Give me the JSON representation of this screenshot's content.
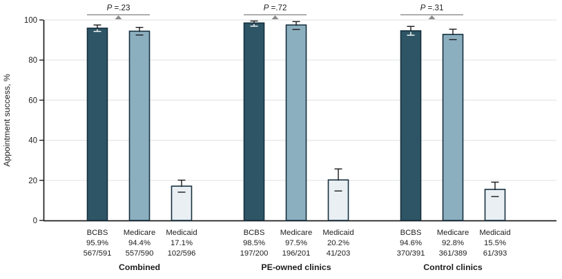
{
  "figure": {
    "kind": "grouped bar chart with error bars and P-value brackets"
  },
  "colors": {
    "bar_bcbs": "#2d5565",
    "bar_medicare": "#8cafbf",
    "bar_medicaid": "#e9eff3",
    "bar_border": "#16303e",
    "axis": "#1e1e1e",
    "gridline": "#e4e6e8",
    "error_bar": "#1a1a1a",
    "error_bar_inner": "#ffffff",
    "bracket": "#7f7f7f",
    "bracket_pointer": "#8b8b8b",
    "text": "#1d1d1d",
    "background": "#ffffff"
  },
  "chart_data": {
    "type": "bar",
    "title": "",
    "xlabel": "",
    "ylabel": "Appointment success, %",
    "ylim": [
      0,
      100
    ],
    "yticks": [
      0,
      20,
      40,
      60,
      80,
      100
    ],
    "grid": true,
    "legend": false,
    "bar_colors": {
      "BCBS": "#2d5565",
      "Medicare": "#8cafbf",
      "Medicaid": "#e9eff3"
    },
    "groups": [
      {
        "label": "Combined",
        "p_symbol": "P",
        "p_rest": " =.23",
        "bars": [
          {
            "payer": "BCBS",
            "value": 95.9,
            "pct_label": "95.9%",
            "fraction": "567/591",
            "ci": [
              94.3,
              97.5
            ]
          },
          {
            "payer": "Medicare",
            "value": 94.4,
            "pct_label": "94.4%",
            "fraction": "557/590",
            "ci": [
              92.5,
              96.3
            ]
          },
          {
            "payer": "Medicaid",
            "value": 17.1,
            "pct_label": "17.1%",
            "fraction": "102/596",
            "ci": [
              14.1,
              20.1
            ]
          }
        ]
      },
      {
        "label": "PE-owned clinics",
        "p_symbol": "P",
        "p_rest": " =.72",
        "bars": [
          {
            "payer": "BCBS",
            "value": 98.5,
            "pct_label": "98.5%",
            "fraction": "197/200",
            "ci": [
              96.9,
              99.5
            ]
          },
          {
            "payer": "Medicare",
            "value": 97.5,
            "pct_label": "97.5%",
            "fraction": "196/201",
            "ci": [
              95.3,
              99.2
            ]
          },
          {
            "payer": "Medicaid",
            "value": 20.2,
            "pct_label": "20.2%",
            "fraction": "41/203",
            "ci": [
              14.7,
              25.7
            ]
          }
        ]
      },
      {
        "label": "Control clinics",
        "p_symbol": "P",
        "p_rest": " =.31",
        "bars": [
          {
            "payer": "BCBS",
            "value": 94.6,
            "pct_label": "94.6%",
            "fraction": "370/391",
            "ci": [
              92.4,
              96.8
            ]
          },
          {
            "payer": "Medicare",
            "value": 92.8,
            "pct_label": "92.8%",
            "fraction": "361/389",
            "ci": [
              90.2,
              95.4
            ]
          },
          {
            "payer": "Medicaid",
            "value": 15.5,
            "pct_label": "15.5%",
            "fraction": "61/393",
            "ci": [
              11.9,
              19.1
            ]
          }
        ]
      }
    ]
  }
}
